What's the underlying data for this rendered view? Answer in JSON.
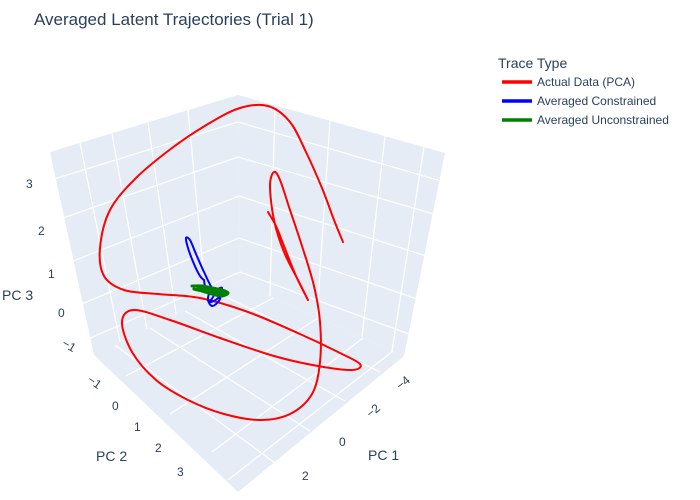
{
  "chart_data": {
    "type": "line",
    "projection": "3d",
    "title": "Averaged Latent Trajectories (Trial 1)",
    "axes": {
      "x": {
        "label": "PC 1",
        "ticks": [
          "−4",
          "−2",
          "0",
          "2"
        ]
      },
      "y": {
        "label": "PC 2",
        "ticks": [
          "−1",
          "0",
          "1",
          "2",
          "3"
        ]
      },
      "z": {
        "label": "PC 3",
        "ticks": [
          "−1",
          "0",
          "1",
          "2",
          "3"
        ]
      }
    },
    "legend": {
      "title": "Trace Type",
      "placement": "top-right",
      "entries": [
        {
          "label": "Actual Data (PCA)",
          "color": "#ff0000"
        },
        {
          "label": "Averaged Constrained",
          "color": "#0000ff"
        },
        {
          "label": "Averaged Unconstrained",
          "color": "#008000"
        }
      ]
    },
    "series": [
      {
        "name": "Actual Data (PCA)",
        "color": "#ff0000",
        "path": [
          [
            343,
            242
          ],
          [
            334,
            220
          ],
          [
            322,
            188
          ],
          [
            306,
            152
          ],
          [
            290,
            122
          ],
          [
            268,
            106
          ],
          [
            240,
            108
          ],
          [
            208,
            124
          ],
          [
            172,
            148
          ],
          [
            136,
            178
          ],
          [
            110,
            210
          ],
          [
            100,
            248
          ],
          [
            104,
            276
          ],
          [
            124,
            290
          ],
          [
            158,
            294
          ],
          [
            200,
            298
          ],
          [
            248,
            312
          ],
          [
            300,
            334
          ],
          [
            338,
            352
          ],
          [
            360,
            364
          ],
          [
            352,
            370
          ],
          [
            318,
            366
          ],
          [
            274,
            356
          ],
          [
            220,
            338
          ],
          [
            170,
            320
          ],
          [
            134,
            310
          ],
          [
            122,
            322
          ],
          [
            132,
            352
          ],
          [
            156,
            380
          ],
          [
            188,
            400
          ],
          [
            224,
            414
          ],
          [
            260,
            420
          ],
          [
            290,
            414
          ],
          [
            312,
            394
          ],
          [
            320,
            362
          ],
          [
            320,
            322
          ],
          [
            314,
            286
          ],
          [
            302,
            246
          ],
          [
            290,
            210
          ],
          [
            280,
            180
          ],
          [
            274,
            172
          ],
          [
            270,
            186
          ],
          [
            274,
            220
          ],
          [
            284,
            252
          ],
          [
            298,
            280
          ],
          [
            308,
            300
          ],
          [
            296,
            276
          ],
          [
            284,
            246
          ],
          [
            276,
            226
          ],
          [
            268,
            212
          ]
        ]
      },
      {
        "name": "Averaged Constrained",
        "color": "#0000ff",
        "path": [
          [
            204,
            280
          ],
          [
            200,
            276
          ],
          [
            194,
            264
          ],
          [
            188,
            248
          ],
          [
            186,
            238
          ],
          [
            190,
            240
          ],
          [
            196,
            254
          ],
          [
            204,
            272
          ],
          [
            212,
            288
          ],
          [
            220,
            296
          ],
          [
            218,
            302
          ],
          [
            212,
            306
          ],
          [
            208,
            300
          ],
          [
            210,
            292
          ],
          [
            216,
            290
          ],
          [
            222,
            288
          ],
          [
            218,
            298
          ],
          [
            210,
            302
          ],
          [
            214,
            294
          ],
          [
            206,
            288
          ],
          [
            204,
            280
          ]
        ]
      },
      {
        "name": "Averaged Unconstrained",
        "color": "#008000",
        "path": [
          [
            192,
            286
          ],
          [
            202,
            286
          ],
          [
            212,
            288
          ],
          [
            222,
            290
          ],
          [
            228,
            293
          ],
          [
            222,
            296
          ],
          [
            212,
            294
          ],
          [
            202,
            291
          ],
          [
            194,
            289
          ],
          [
            198,
            290
          ],
          [
            210,
            291
          ],
          [
            220,
            292
          ],
          [
            226,
            294
          ],
          [
            216,
            292
          ],
          [
            206,
            290
          ],
          [
            198,
            288
          ],
          [
            204,
            289
          ],
          [
            214,
            290
          ]
        ]
      }
    ]
  }
}
